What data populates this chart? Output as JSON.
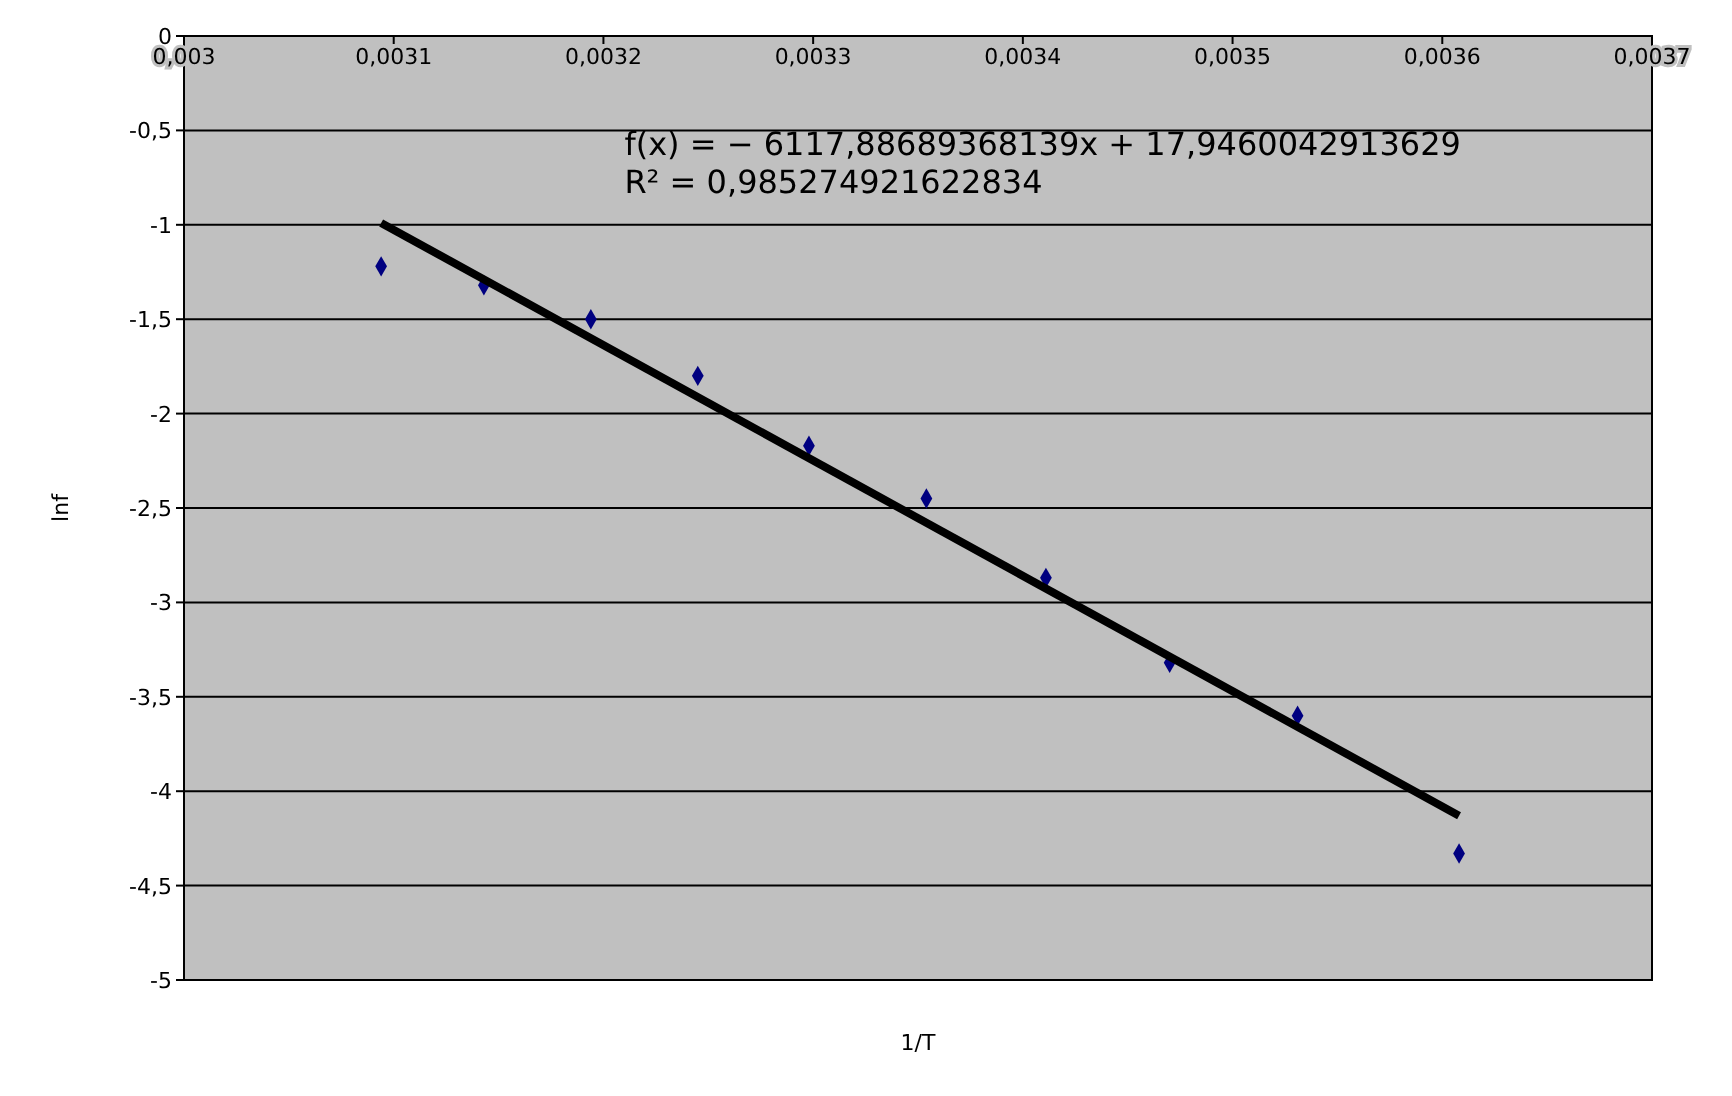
{
  "chart_data": {
    "type": "scatter",
    "xlabel": "1/T",
    "ylabel": "lnf",
    "xlim": [
      0.003,
      0.0037
    ],
    "ylim": [
      -5,
      0
    ],
    "xticks": [
      {
        "value": 0.003,
        "label": "0,003"
      },
      {
        "value": 0.0031,
        "label": "0,0031"
      },
      {
        "value": 0.0032,
        "label": "0,0032"
      },
      {
        "value": 0.0033,
        "label": "0,0033"
      },
      {
        "value": 0.0034,
        "label": "0,0034"
      },
      {
        "value": 0.0035,
        "label": "0,0035"
      },
      {
        "value": 0.0036,
        "label": "0,0036"
      },
      {
        "value": 0.0037,
        "label": "0,0037"
      }
    ],
    "yticks": [
      0,
      {
        "value": -0.5,
        "label": "-0,5"
      },
      -1,
      {
        "value": -1.5,
        "label": "-1,5"
      },
      -2,
      {
        "value": -2.5,
        "label": "-2,5"
      },
      -3,
      {
        "value": -3.5,
        "label": "-3,5"
      },
      -4,
      {
        "value": -4.5,
        "label": "-4,5"
      },
      -5
    ],
    "grid": "y",
    "marker": "diamond",
    "annotations": [
      "f(x) = − 6117,88689368139x + 17,9460042913629",
      "R² = 0,985274921622834"
    ],
    "series": [
      {
        "color": "#000080",
        "x": [
          0.003094,
          0.003143,
          0.003194,
          0.003245,
          0.003298,
          0.003354,
          0.003411,
          0.00347,
          0.003531,
          0.003608
        ],
        "values": [
          -1.22,
          -1.32,
          -1.5,
          -1.8,
          -2.17,
          -2.45,
          -2.87,
          -3.32,
          -3.6,
          -4.33
        ]
      },
      {
        "type": "line",
        "marker": "none",
        "color": "#000000",
        "x": [
          0.003094,
          0.003608
        ],
        "values": [
          -0.99,
          -4.13
        ]
      }
    ]
  }
}
